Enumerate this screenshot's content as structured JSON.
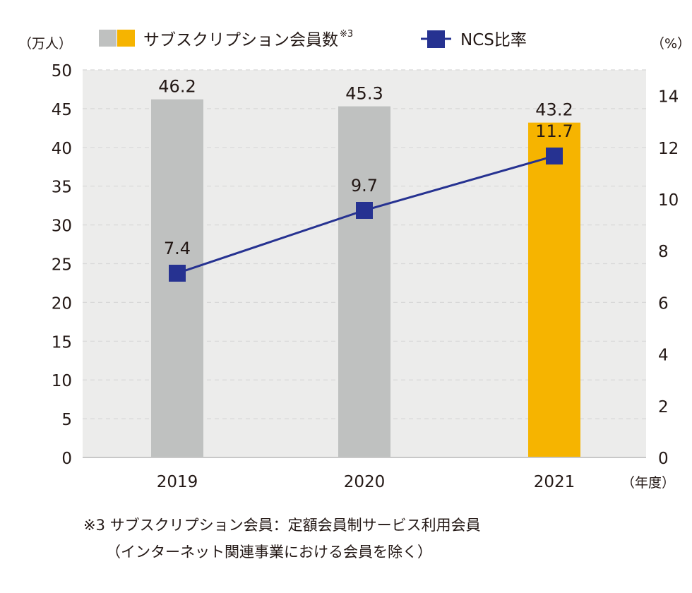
{
  "chart_data": {
    "type": "bar",
    "title": "",
    "categories": [
      "2019",
      "2020",
      "2021"
    ],
    "xlabel": "（年度）",
    "ylabel_left": "（万人）",
    "ylabel_right": "（%）",
    "ylim_left": [
      0,
      50
    ],
    "yticks_left": [
      0,
      5,
      10,
      15,
      20,
      25,
      30,
      35,
      40,
      45,
      50
    ],
    "ylim_right": [
      0,
      15
    ],
    "yticks_right": [
      0,
      2,
      4,
      6,
      8,
      10,
      12,
      14
    ],
    "grid": true,
    "legend_position": "top",
    "series": [
      {
        "name": "サブスクリプション会員数",
        "name_suffix": "※3",
        "type": "bar",
        "axis": "left",
        "values": [
          46.2,
          45.3,
          43.2
        ],
        "labels": [
          "46.2",
          "45.3",
          "43.2"
        ],
        "colors": [
          "#bfc1c0",
          "#bfc1c0",
          "#f6b400"
        ]
      },
      {
        "name": "NCS比率",
        "type": "line",
        "axis": "right",
        "values": [
          7.4,
          9.7,
          11.7
        ],
        "labels": [
          "7.4",
          "9.7",
          "11.7"
        ],
        "color": "#263291"
      }
    ]
  },
  "colors": {
    "plot_background": "#ececeb",
    "bar_past": "#bfc1c0",
    "bar_current": "#f6b400",
    "line": "#263291",
    "text": "#231815",
    "gridline": "#d8d8d8"
  },
  "footnote": {
    "line1": "※3 サブスクリプション会員：定額会員制サービス利用会員",
    "line2": "（インターネット関連事業における会員を除く）"
  }
}
